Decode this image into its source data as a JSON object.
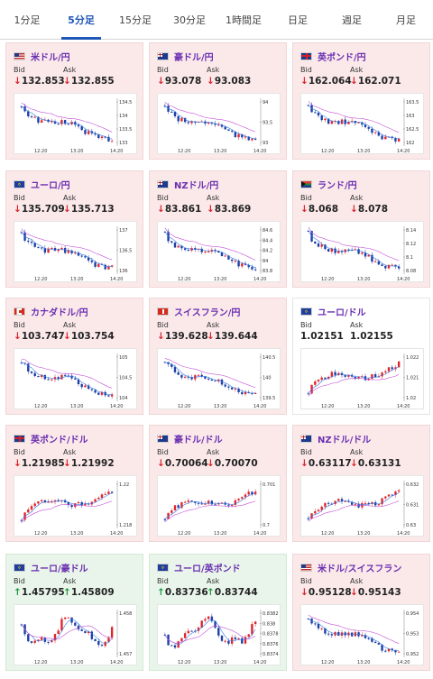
{
  "tabs": [
    {
      "label": "1分足",
      "active": false
    },
    {
      "label": "5分足",
      "active": true
    },
    {
      "label": "15分足",
      "active": false
    },
    {
      "label": "30分足",
      "active": false
    },
    {
      "label": "1時間足",
      "active": false
    },
    {
      "label": "日足",
      "active": false
    },
    {
      "label": "週足",
      "active": false
    },
    {
      "label": "月足",
      "active": false
    }
  ],
  "bid_label": "Bid",
  "ask_label": "Ask",
  "colors": {
    "down_bg": "#fbe9ea",
    "up_bg": "#e9f5ea",
    "neutral_bg": "#ffffff",
    "tab_active": "#1f56b8",
    "candle_up": "#e0242c",
    "candle_down": "#1a3fa8",
    "ma_short": "#3a7be0",
    "ma_long": "#c24fd6"
  },
  "cards": [
    {
      "pair": "米ドル/円",
      "flag": "us",
      "trend": "down",
      "bid": "132.853",
      "ask": "132.855",
      "chart_data": {
        "type": "candlestick",
        "yticks": [
          "134.5",
          "134",
          "133.5",
          "133"
        ],
        "xticks": [
          "12:20",
          "13:20",
          "14:20"
        ],
        "shape": "fall"
      }
    },
    {
      "pair": "豪ドル/円",
      "flag": "au",
      "trend": "down",
      "bid": "93.078",
      "ask": "93.083",
      "chart_data": {
        "type": "candlestick",
        "yticks": [
          "94",
          "93.5",
          "93"
        ],
        "xticks": [
          "12:20",
          "13:20",
          "14:20"
        ],
        "shape": "fall"
      }
    },
    {
      "pair": "英ポンド/円",
      "flag": "gb",
      "trend": "down",
      "bid": "162.064",
      "ask": "162.071",
      "chart_data": {
        "type": "candlestick",
        "yticks": [
          "163.5",
          "163",
          "162.5",
          "162"
        ],
        "xticks": [
          "12:20",
          "13:20",
          "14:20"
        ],
        "shape": "fall"
      }
    },
    {
      "pair": "ユーロ/円",
      "flag": "eu",
      "trend": "down",
      "bid": "135.709",
      "ask": "135.713",
      "chart_data": {
        "type": "candlestick",
        "yticks": [
          "137",
          "136.5",
          "136"
        ],
        "xticks": [
          "12:20",
          "13:20",
          "14:20"
        ],
        "shape": "fall"
      }
    },
    {
      "pair": "NZドル/円",
      "flag": "nz",
      "trend": "down",
      "bid": "83.861",
      "ask": "83.869",
      "chart_data": {
        "type": "candlestick",
        "yticks": [
          "84.6",
          "84.4",
          "84.2",
          "84",
          "83.8"
        ],
        "xticks": [
          "12:20",
          "13:20",
          "14:20"
        ],
        "shape": "fall"
      }
    },
    {
      "pair": "ランド/円",
      "flag": "za",
      "trend": "down",
      "bid": "8.068",
      "ask": "8.078",
      "chart_data": {
        "type": "candlestick",
        "yticks": [
          "8.14",
          "8.12",
          "8.1",
          "8.08"
        ],
        "xticks": [
          "12:20",
          "13:20",
          "14:20"
        ],
        "shape": "fall"
      }
    },
    {
      "pair": "カナダドル/円",
      "flag": "ca",
      "trend": "down",
      "bid": "103.747",
      "ask": "103.754",
      "chart_data": {
        "type": "candlestick",
        "yticks": [
          "105",
          "104.5",
          "104"
        ],
        "xticks": [
          "12:20",
          "13:20",
          "14:20"
        ],
        "shape": "fall"
      }
    },
    {
      "pair": "スイスフラン/円",
      "flag": "ch",
      "trend": "down",
      "bid": "139.628",
      "ask": "139.644",
      "chart_data": {
        "type": "candlestick",
        "yticks": [
          "140.5",
          "140",
          "139.5"
        ],
        "xticks": [
          "12:20",
          "13:20",
          "14:20"
        ],
        "shape": "fall"
      }
    },
    {
      "pair": "ユーロ/ドル",
      "flag": "eu",
      "trend": "flat",
      "bid": "1.02151",
      "ask": "1.02155",
      "chart_data": {
        "type": "candlestick",
        "yticks": [
          "1.022",
          "1.021",
          "1.02"
        ],
        "xticks": [
          "12:20",
          "13:20",
          "14:20"
        ],
        "shape": "rise"
      }
    },
    {
      "pair": "英ポンド/ドル",
      "flag": "gb",
      "trend": "down",
      "bid": "1.21985",
      "ask": "1.21992",
      "chart_data": {
        "type": "candlestick",
        "yticks": [
          "1.22",
          "1.218"
        ],
        "xticks": [
          "12:20",
          "13:20",
          "14:20"
        ],
        "shape": "rise"
      }
    },
    {
      "pair": "豪ドル/ドル",
      "flag": "au",
      "trend": "down",
      "bid": "0.70064",
      "ask": "0.70070",
      "chart_data": {
        "type": "candlestick",
        "yticks": [
          "0.701",
          "0.7"
        ],
        "xticks": [
          "12:20",
          "13:20",
          "14:20"
        ],
        "shape": "rise"
      }
    },
    {
      "pair": "NZドル/ドル",
      "flag": "nz",
      "trend": "down",
      "bid": "0.63117",
      "ask": "0.63131",
      "chart_data": {
        "type": "candlestick",
        "yticks": [
          "0.632",
          "0.631",
          "0.63"
        ],
        "xticks": [
          "12:20",
          "13:20",
          "14:20"
        ],
        "shape": "rise"
      }
    },
    {
      "pair": "ユーロ/豪ドル",
      "flag": "eu",
      "trend": "up",
      "bid": "1.45795",
      "ask": "1.45809",
      "chart_data": {
        "type": "candlestick",
        "yticks": [
          "1.458",
          "1.457"
        ],
        "xticks": [
          "12:20",
          "13:20",
          "14:20"
        ],
        "shape": "choppy"
      }
    },
    {
      "pair": "ユーロ/英ポンド",
      "flag": "eu",
      "trend": "up",
      "bid": "0.83736",
      "ask": "0.83744",
      "chart_data": {
        "type": "candlestick",
        "yticks": [
          "0.8382",
          "0.838",
          "0.8378",
          "0.8376",
          "0.8374"
        ],
        "xticks": [
          "12:20",
          "13:20",
          "14:20"
        ],
        "shape": "choppy"
      }
    },
    {
      "pair": "米ドル/スイスフラン",
      "flag": "us",
      "trend": "down",
      "bid": "0.95128",
      "ask": "0.95143",
      "chart_data": {
        "type": "candlestick",
        "yticks": [
          "0.954",
          "0.953",
          "0.952"
        ],
        "xticks": [
          "12:20",
          "13:20",
          "14:20"
        ],
        "shape": "fall"
      }
    }
  ]
}
